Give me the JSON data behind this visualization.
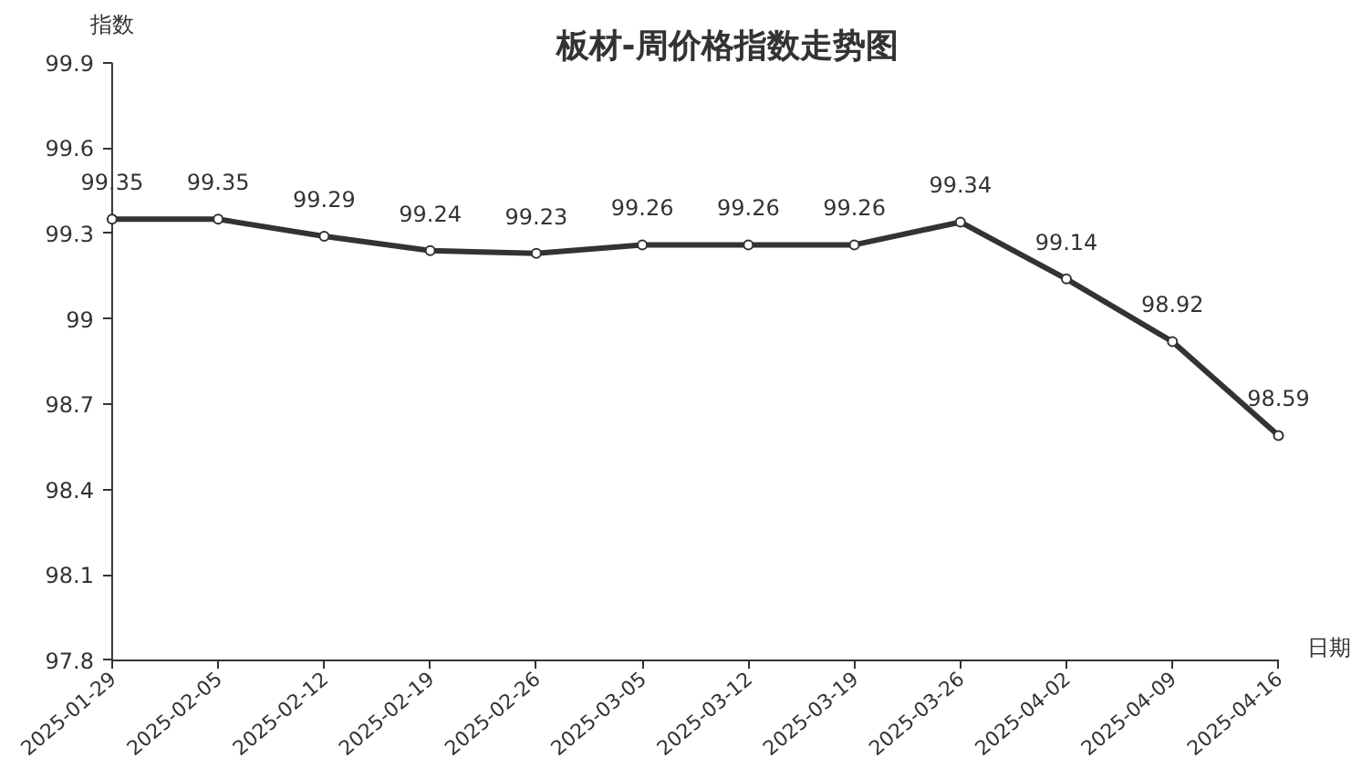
{
  "chart_data": {
    "type": "line",
    "title": "板材-周价格指数走势图",
    "xlabel": "日期",
    "ylabel": "指数",
    "categories": [
      "2025-01-29",
      "2025-02-05",
      "2025-02-12",
      "2025-02-19",
      "2025-02-26",
      "2025-03-05",
      "2025-03-12",
      "2025-03-19",
      "2025-03-26",
      "2025-04-02",
      "2025-04-09",
      "2025-04-16"
    ],
    "series": [
      {
        "color": "#333333",
        "values": [
          99.35,
          99.35,
          99.29,
          99.24,
          99.23,
          99.26,
          99.26,
          99.26,
          99.34,
          99.14,
          98.92,
          98.59
        ]
      }
    ],
    "ylim": [
      97.8,
      99.9
    ],
    "yticks": [
      97.8,
      98.1,
      98.4,
      98.7,
      {
        "value": 99.0,
        "label": "99"
      },
      99.3,
      99.6,
      99.9
    ],
    "grid": false,
    "marker": "circle",
    "line_style": "solid",
    "data_labels": true
  }
}
